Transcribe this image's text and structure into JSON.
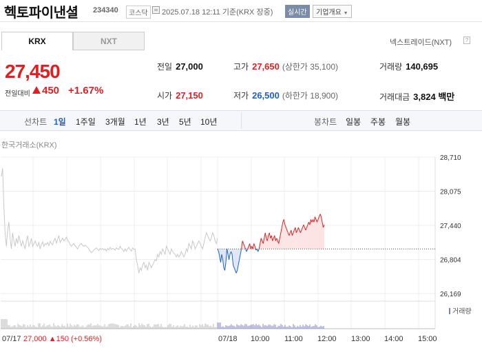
{
  "header": {
    "stock_name": "헥토파이낸셜",
    "stock_code": "234340",
    "market": "코스닥",
    "time_text": "2025.07.18 12:11 기준(KRX 장중)",
    "realtime_badge": "실시간",
    "company_button": "기업개요"
  },
  "tabs": {
    "krx": "KRX",
    "nxt": "NXT"
  },
  "nxt_link": "넥스트레이드(NXT)",
  "help_icon_text": "?",
  "price": {
    "current": "27,450",
    "change_label": "전일대비",
    "change_amount": "450",
    "change_percent": "+1.67%",
    "direction": "up"
  },
  "stats": {
    "prev_close_label": "전일",
    "prev_close": "27,000",
    "high_label": "고가",
    "high": "27,650",
    "upper_limit": "(상한가 35,100)",
    "volume_label": "거래량",
    "volume": "140,695",
    "open_label": "시가",
    "open": "27,150",
    "low_label": "저가",
    "low": "26,500",
    "lower_limit": "(하한가 18,900)",
    "value_label": "거래대금",
    "value": "3,824 백만"
  },
  "period_bar": {
    "line_label": "선차트",
    "line_periods": [
      "1일",
      "1주일",
      "3개월",
      "1년",
      "3년",
      "5년",
      "10년"
    ],
    "active": "1일",
    "candle_label": "봉차트",
    "candle_periods": [
      "일봉",
      "주봉",
      "월봉"
    ]
  },
  "chart_title": "한국거래소(KRX)",
  "volume_legend": "거래량",
  "footer": {
    "prev_date": "07/17",
    "prev_info": "27,000 ▲150 (+0.56%)",
    "today_date": "07/18",
    "times": [
      "10:00",
      "11:00",
      "12:00",
      "13:00",
      "14:00",
      "15:00"
    ]
  },
  "colors": {
    "up": "#e02020",
    "down": "#1a5fcf",
    "prev_line": "#c8c8c8",
    "up_fill": "#fde3e3",
    "down_fill": "#dde6f7"
  },
  "chart_data": {
    "type": "line",
    "ylim": [
      26169,
      28710
    ],
    "y_ticks": [
      28710,
      28075,
      27440,
      26804,
      26169
    ],
    "baseline": 27000,
    "x_ticks": [
      "07/17",
      "07/18",
      "10:00",
      "11:00",
      "12:00",
      "13:00",
      "14:00",
      "15:00"
    ],
    "prev_day": {
      "name": "07/17",
      "values": [
        28350,
        28500,
        27800,
        27300,
        27050,
        27350,
        27500,
        27200,
        27000,
        27300,
        27150,
        27050,
        27200,
        27100,
        27250,
        27150,
        27050,
        27150,
        27080,
        27000,
        27150,
        27250,
        27050,
        27100,
        27200,
        27050,
        27100,
        27150,
        27080,
        27050,
        27120,
        27000,
        27080,
        27130,
        27050,
        27100,
        27080,
        27120,
        27060,
        27140,
        27100,
        27080,
        27150,
        27200,
        27110,
        27180,
        27250,
        27120,
        27160,
        27200,
        27150,
        27180,
        27220,
        27160,
        27140,
        27080,
        27050,
        27080,
        27100,
        27060,
        27030,
        27000,
        27050,
        27080,
        27100,
        27070,
        27050,
        27070,
        27050,
        27030,
        27000,
        26960,
        26930,
        26950,
        26980,
        27000,
        27020,
        26990,
        26970,
        27010,
        26990,
        27010,
        26980,
        27000,
        26960,
        27010,
        26980,
        27030,
        26990,
        27010,
        27000,
        26980,
        27020,
        27000,
        26990,
        27050,
        27010,
        26990,
        26950,
        27000,
        26960,
        27000,
        27030,
        26990,
        26960,
        27020,
        26990,
        27000,
        26800,
        26700,
        26550,
        26650,
        26600,
        26700,
        26750,
        26650,
        26700,
        26600,
        26750,
        26700,
        26650,
        26700,
        26750,
        26800,
        26780,
        26900,
        26850,
        26950,
        26900,
        27000,
        26950,
        26900,
        27050,
        27000,
        26950,
        26900,
        27000,
        26950,
        26920,
        26900,
        26850,
        26900,
        26850,
        26880,
        26950,
        26900,
        26850,
        26900,
        27000,
        26950,
        27100,
        27050,
        27000,
        27150,
        27100,
        27000,
        27050,
        27100,
        27150,
        27100,
        27050,
        27000,
        27100,
        27200,
        27300,
        27250,
        27200,
        27150,
        27200,
        27300,
        27250,
        27150,
        27100,
        27200
      ]
    },
    "today": {
      "name": "07/18",
      "values": [
        27000,
        26950,
        26850,
        26750,
        26900,
        26800,
        26650,
        26600,
        26750,
        27000,
        26900,
        26800,
        26900,
        26950,
        26900,
        26700,
        26650,
        26600,
        26550,
        26600,
        26700,
        26800,
        26900,
        27000,
        27150,
        27100,
        27050,
        27000,
        26950,
        27000,
        27050,
        27100,
        27000,
        27050,
        27000,
        27100,
        27050,
        26980,
        27000,
        26950,
        27000,
        27100,
        27200,
        27150,
        27100,
        27200,
        27300,
        27200,
        27150,
        27250,
        27300,
        27200,
        27250,
        27150,
        27200,
        27250,
        27150,
        27200,
        27150,
        27100,
        27200,
        27300,
        27400,
        27500,
        27550,
        27450,
        27400,
        27350,
        27300,
        27250,
        27300,
        27350,
        27250,
        27300,
        27350,
        27400,
        27300,
        27350,
        27400,
        27350,
        27300,
        27350,
        27400,
        27450,
        27400,
        27350,
        27400,
        27450,
        27500,
        27450,
        27550,
        27500,
        27550,
        27500,
        27600,
        27550,
        27500,
        27550,
        27600,
        27650,
        27600,
        27500,
        27400,
        27450
      ]
    }
  }
}
